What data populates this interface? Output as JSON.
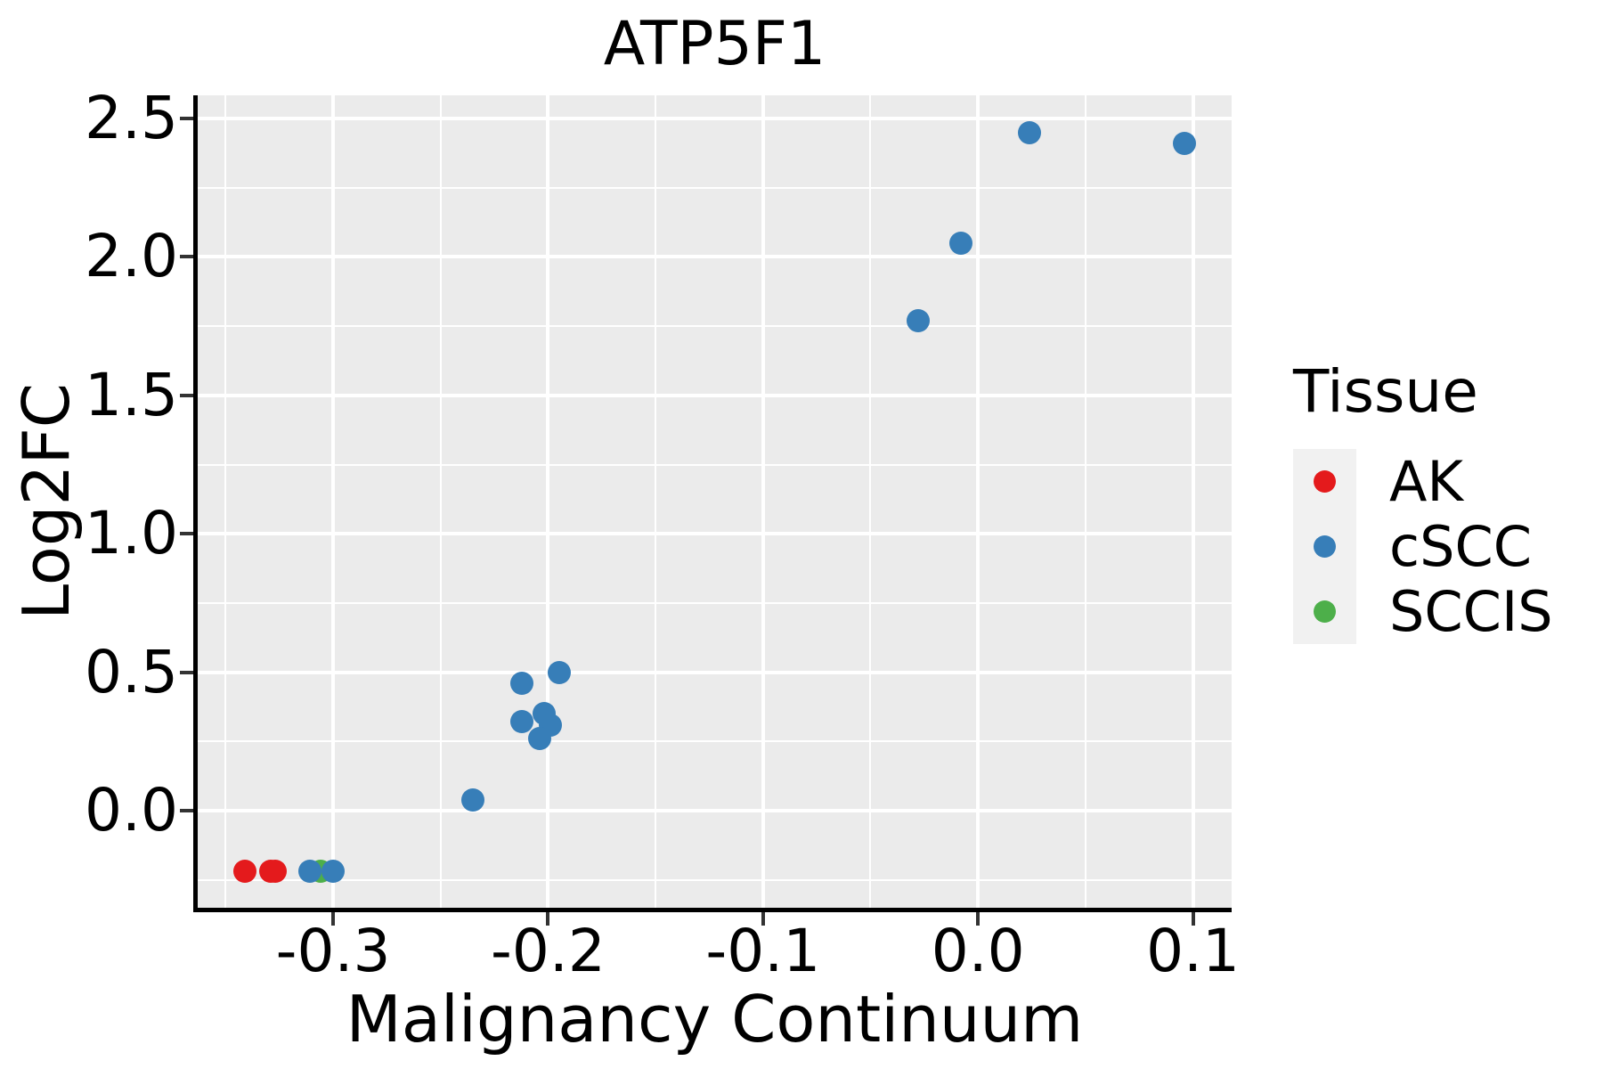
{
  "chart_data": {
    "type": "scatter",
    "title": "ATP5F1",
    "xlabel": "Malignancy Continuum",
    "ylabel": "Log2FC",
    "legend_title": "Tissue",
    "legend_position": "right",
    "grid": true,
    "panel_bg": "#ebebeb",
    "grid_color": "#ffffff",
    "axis_line_color": "#000000",
    "tick_mark_color": "#333333",
    "xlim": [
      -0.363,
      0.118
    ],
    "ylim": [
      -0.351,
      2.584
    ],
    "x_ticks": {
      "values": [
        -0.3,
        -0.2,
        -0.1,
        0.0,
        0.1
      ],
      "labels": [
        "-0.3",
        "-0.2",
        "-0.1",
        "0.0",
        "0.1"
      ],
      "minor": [
        -0.35,
        -0.25,
        -0.15,
        -0.05,
        0.05
      ]
    },
    "y_ticks": {
      "values": [
        0.0,
        0.5,
        1.0,
        1.5,
        2.0,
        2.5
      ],
      "labels": [
        "0.0",
        "0.5",
        "1.0",
        "1.5",
        "2.0",
        "2.5"
      ],
      "minor": [
        -0.25,
        0.25,
        0.75,
        1.25,
        1.75,
        2.25
      ]
    },
    "series": [
      {
        "name": "AK",
        "color": "#e41a1c",
        "z": 1,
        "points": [
          [
            -0.341,
            -0.22
          ],
          [
            -0.329,
            -0.22
          ],
          [
            -0.327,
            -0.22
          ]
        ]
      },
      {
        "name": "cSCC",
        "color": "#377eb8",
        "z": 3,
        "points": [
          [
            -0.311,
            -0.22
          ],
          [
            -0.3,
            -0.22
          ],
          [
            -0.235,
            0.04
          ],
          [
            -0.212,
            0.46
          ],
          [
            -0.195,
            0.5
          ],
          [
            -0.212,
            0.32
          ],
          [
            -0.202,
            0.35
          ],
          [
            -0.199,
            0.31
          ],
          [
            -0.204,
            0.26
          ],
          [
            -0.028,
            1.77
          ],
          [
            -0.008,
            2.05
          ],
          [
            0.024,
            2.45
          ],
          [
            0.096,
            2.41
          ]
        ]
      },
      {
        "name": "SCCIS",
        "color": "#4daf4a",
        "z": 2,
        "points": [
          [
            -0.306,
            -0.22
          ]
        ]
      }
    ]
  }
}
